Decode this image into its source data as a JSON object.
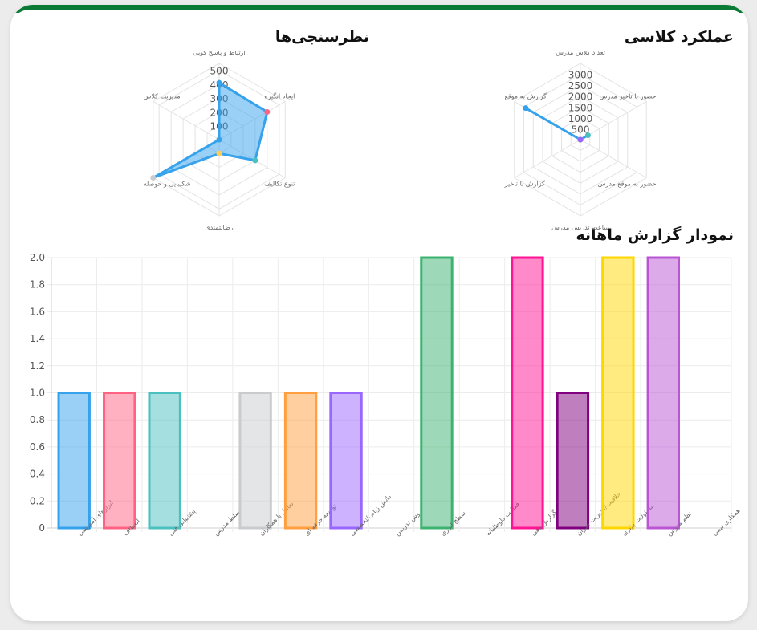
{
  "titles": {
    "class_performance": "عملکرد کلاسی",
    "surveys": "نظرسنجی‌ها",
    "monthly_report": "نمودار گزارش ماهانه"
  },
  "chart_data": [
    {
      "id": "class_performance",
      "type": "radar",
      "title": "عملکرد کلاسی",
      "labels": [
        "تعداد کلاس مدرس",
        "حضور با تاخیر مدرس",
        "حضور به موقع مدرس",
        "ساعت تدریس مدرس",
        "گزارش با تاخیر",
        "گزارش به موقع"
      ],
      "ticks": [
        500,
        1000,
        1500,
        2000,
        2500,
        3000
      ],
      "rmax": 3500,
      "values": [
        0,
        400,
        0,
        0,
        0,
        2900
      ],
      "colors": {
        "line": "#36a2eb",
        "fill": "rgba(54,162,235,0.5)"
      },
      "point_colors": [
        "#ff9f40",
        "#4bc0c0",
        "#36a2eb",
        "#ffcd56",
        "#9966ff",
        "#36a2eb"
      ]
    },
    {
      "id": "surveys",
      "type": "radar",
      "title": "نظرسنجی‌ها",
      "labels": [
        "ارتباط و پاسخ گویی",
        "ایجاد انگیزه",
        "تنوع تکالیف",
        "رضایتمندی",
        "شکیبایی و حوصله",
        "مدیریت کلاس"
      ],
      "ticks": [
        100,
        200,
        300,
        400,
        500
      ],
      "rmax": 550,
      "values": [
        410,
        400,
        300,
        100,
        550,
        0
      ],
      "colors": {
        "line": "#36a2eb",
        "fill": "rgba(54,162,235,0.5)"
      },
      "point_colors": [
        "#36a2eb",
        "#ff6384",
        "#4bc0c0",
        "#ffcd56",
        "#c9cbcf",
        "#36a2eb"
      ]
    },
    {
      "id": "monthly_report",
      "type": "bar",
      "title": "نمودار گزارش ماهانه",
      "categories": [
        "ابزارهای آموزشی",
        "انعطاف",
        "پشتیبانی فنی",
        "تسلط مدرس",
        "تعامل با همکاران",
        "توسعه حرفه ای",
        "دانش زبانی/تخصصی",
        "روش تدریس",
        "سطح انرژی",
        "فعالیت داوطلبانه",
        "گزارش دهی",
        "خلاقیت/مدیریت بحران",
        "مسئولیت پذیری",
        "نظم مدرس",
        "همکاری تیمی"
      ],
      "values": [
        1,
        1,
        1,
        0,
        1,
        1,
        1,
        0,
        2,
        0,
        2,
        1,
        2,
        2,
        0
      ],
      "ylim": [
        0,
        2
      ],
      "yticks": [
        "0",
        "0.2",
        "0.4",
        "0.6",
        "0.8",
        "1.0",
        "1.2",
        "1.4",
        "1.6",
        "1.8",
        "2.0"
      ],
      "bar_colors": [
        {
          "fill": "rgba(54,162,235,0.5)",
          "stroke": "#36a2eb"
        },
        {
          "fill": "rgba(255,99,132,0.5)",
          "stroke": "#ff6384"
        },
        {
          "fill": "rgba(75,192,192,0.5)",
          "stroke": "#4bc0c0"
        },
        {
          "fill": "rgba(255,205,86,0.5)",
          "stroke": "#ffcd56"
        },
        {
          "fill": "rgba(201,203,207,0.5)",
          "stroke": "#c9cbcf"
        },
        {
          "fill": "rgba(255,159,64,0.5)",
          "stroke": "#ff9f40"
        },
        {
          "fill": "rgba(153,102,255,0.5)",
          "stroke": "#9966ff"
        },
        {
          "fill": "rgba(255,99,132,0.5)",
          "stroke": "#ff6384"
        },
        {
          "fill": "rgba(60,179,113,0.5)",
          "stroke": "#3cb371"
        },
        {
          "fill": "rgba(54,162,235,0.5)",
          "stroke": "#36a2eb"
        },
        {
          "fill": "rgba(255,20,147,0.5)",
          "stroke": "#ff1493"
        },
        {
          "fill": "rgba(128,0,128,0.5)",
          "stroke": "#800080"
        },
        {
          "fill": "rgba(255,215,0,0.5)",
          "stroke": "#ffd700"
        },
        {
          "fill": "rgba(186,85,211,0.5)",
          "stroke": "#ba55d3"
        },
        {
          "fill": "rgba(75,192,192,0.5)",
          "stroke": "#4bc0c0"
        }
      ]
    }
  ]
}
